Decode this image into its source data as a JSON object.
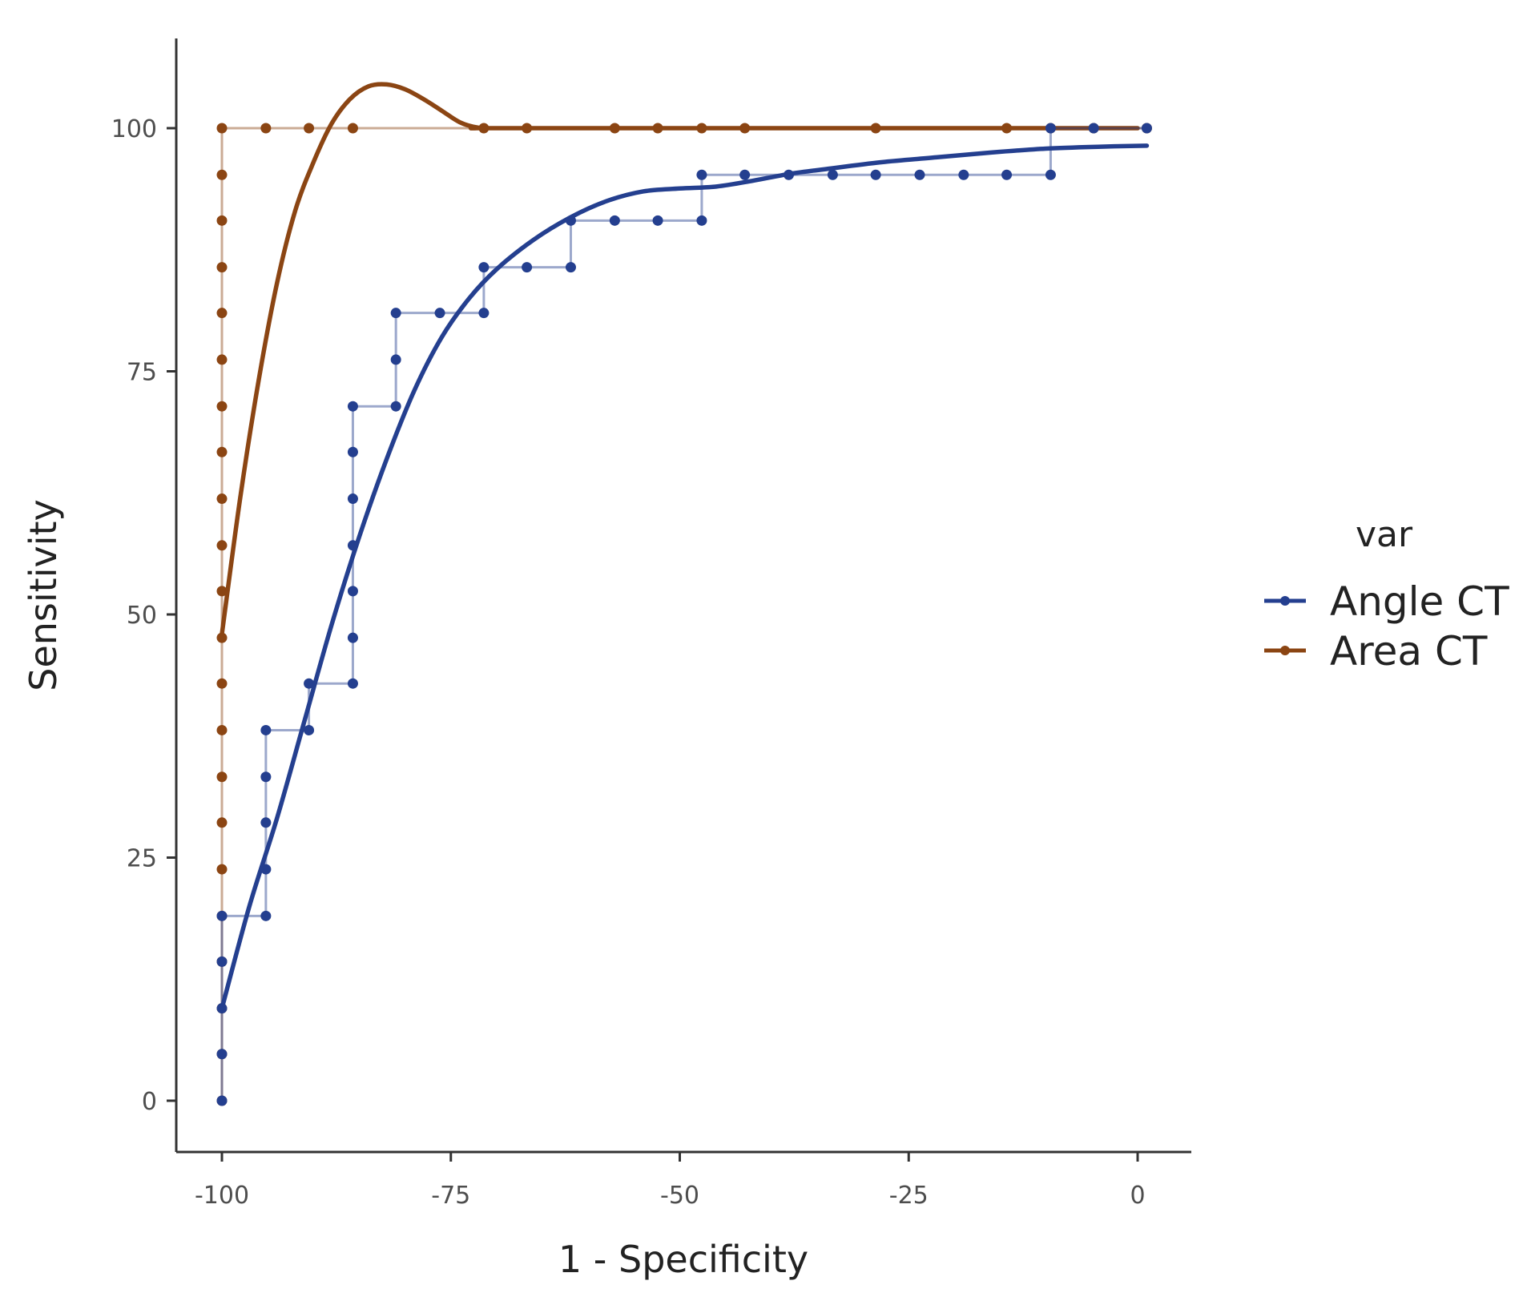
{
  "chart_data": {
    "type": "line",
    "title": "",
    "xlabel": "1 - Specificity",
    "ylabel": "Sensitivity",
    "xlim": [
      -104,
      6
    ],
    "ylim": [
      -5,
      109
    ],
    "x_ticks": [
      -100,
      -75,
      -50,
      -25,
      0
    ],
    "x_tick_labels": [
      "-100",
      "-75",
      "-50",
      "-25",
      "0"
    ],
    "y_ticks": [
      0,
      25,
      50,
      75,
      100
    ],
    "y_tick_labels": [
      "0",
      "25",
      "50",
      "75",
      "100"
    ],
    "grid": false,
    "legend": {
      "title": "var",
      "position": "right"
    },
    "series": [
      {
        "name": "Angle CT",
        "color": "#243f8f",
        "step_points": [
          [
            -100,
            0
          ],
          [
            -100,
            4.8
          ],
          [
            -100,
            9.5
          ],
          [
            -100,
            14.3
          ],
          [
            -100,
            19
          ],
          [
            -95.2,
            19
          ],
          [
            -95.2,
            23.8
          ],
          [
            -95.2,
            28.6
          ],
          [
            -95.2,
            33.3
          ],
          [
            -95.2,
            38.1
          ],
          [
            -90.5,
            38.1
          ],
          [
            -90.5,
            42.9
          ],
          [
            -85.7,
            42.9
          ],
          [
            -85.7,
            47.6
          ],
          [
            -85.7,
            52.4
          ],
          [
            -85.7,
            57.1
          ],
          [
            -85.7,
            61.9
          ],
          [
            -85.7,
            66.7
          ],
          [
            -85.7,
            71.4
          ],
          [
            -81,
            71.4
          ],
          [
            -81,
            76.2
          ],
          [
            -81,
            81
          ],
          [
            -76.2,
            81
          ],
          [
            -71.4,
            81
          ],
          [
            -71.4,
            85.7
          ],
          [
            -66.7,
            85.7
          ],
          [
            -61.9,
            85.7
          ],
          [
            -61.9,
            90.5
          ],
          [
            -57.1,
            90.5
          ],
          [
            -52.4,
            90.5
          ],
          [
            -47.6,
            90.5
          ],
          [
            -47.6,
            95.2
          ],
          [
            -42.9,
            95.2
          ],
          [
            -38.1,
            95.2
          ],
          [
            -33.3,
            95.2
          ],
          [
            -28.6,
            95.2
          ],
          [
            -23.8,
            95.2
          ],
          [
            -19,
            95.2
          ],
          [
            -14.3,
            95.2
          ],
          [
            -9.5,
            95.2
          ],
          [
            -9.5,
            100
          ],
          [
            -4.8,
            100
          ],
          [
            1,
            100
          ]
        ],
        "smooth_curve": [
          [
            -100,
            9.5
          ],
          [
            -97,
            20
          ],
          [
            -94,
            29
          ],
          [
            -91,
            39
          ],
          [
            -88,
            49
          ],
          [
            -85,
            58
          ],
          [
            -82,
            66
          ],
          [
            -79,
            73
          ],
          [
            -76,
            78.5
          ],
          [
            -73,
            82.5
          ],
          [
            -70,
            85.5
          ],
          [
            -66,
            88.5
          ],
          [
            -62,
            90.8
          ],
          [
            -58,
            92.5
          ],
          [
            -54,
            93.5
          ],
          [
            -50,
            93.8
          ],
          [
            -46,
            94
          ],
          [
            -42,
            94.6
          ],
          [
            -38,
            95.3
          ],
          [
            -34,
            95.8
          ],
          [
            -28,
            96.5
          ],
          [
            -22,
            97
          ],
          [
            -16,
            97.5
          ],
          [
            -10,
            97.9
          ],
          [
            -4,
            98.1
          ],
          [
            1,
            98.2
          ]
        ]
      },
      {
        "name": "Area CT",
        "color": "#8b4513",
        "step_points": [
          [
            -100,
            0
          ],
          [
            -100,
            4.8
          ],
          [
            -100,
            9.5
          ],
          [
            -100,
            14.3
          ],
          [
            -100,
            19
          ],
          [
            -100,
            23.8
          ],
          [
            -100,
            28.6
          ],
          [
            -100,
            33.3
          ],
          [
            -100,
            38.1
          ],
          [
            -100,
            42.9
          ],
          [
            -100,
            47.6
          ],
          [
            -100,
            52.4
          ],
          [
            -100,
            57.1
          ],
          [
            -100,
            61.9
          ],
          [
            -100,
            66.7
          ],
          [
            -100,
            71.4
          ],
          [
            -100,
            76.2
          ],
          [
            -100,
            81
          ],
          [
            -100,
            85.7
          ],
          [
            -100,
            90.5
          ],
          [
            -100,
            95.2
          ],
          [
            -100,
            100
          ],
          [
            -95.2,
            100
          ],
          [
            -90.5,
            100
          ],
          [
            -85.7,
            100
          ],
          [
            -71.4,
            100
          ],
          [
            -66.7,
            100
          ],
          [
            -57.1,
            100
          ],
          [
            -52.4,
            100
          ],
          [
            -47.6,
            100
          ],
          [
            -42.9,
            100
          ],
          [
            -28.6,
            100
          ],
          [
            -14.3,
            100
          ],
          [
            -9.5,
            100
          ],
          [
            -4.8,
            100
          ],
          [
            1,
            100
          ]
        ],
        "smooth_curve": [
          [
            -100,
            48
          ],
          [
            -98,
            62
          ],
          [
            -96,
            74
          ],
          [
            -94,
            84
          ],
          [
            -92,
            91.5
          ],
          [
            -90,
            96.5
          ],
          [
            -88,
            100.5
          ],
          [
            -86,
            103
          ],
          [
            -84,
            104.3
          ],
          [
            -82,
            104.5
          ],
          [
            -80,
            104
          ],
          [
            -78,
            103
          ],
          [
            -76,
            101.8
          ],
          [
            -74,
            100.6
          ],
          [
            -72,
            100.05
          ],
          [
            -70,
            100
          ],
          [
            -40,
            100
          ],
          [
            0,
            100
          ]
        ]
      }
    ]
  }
}
